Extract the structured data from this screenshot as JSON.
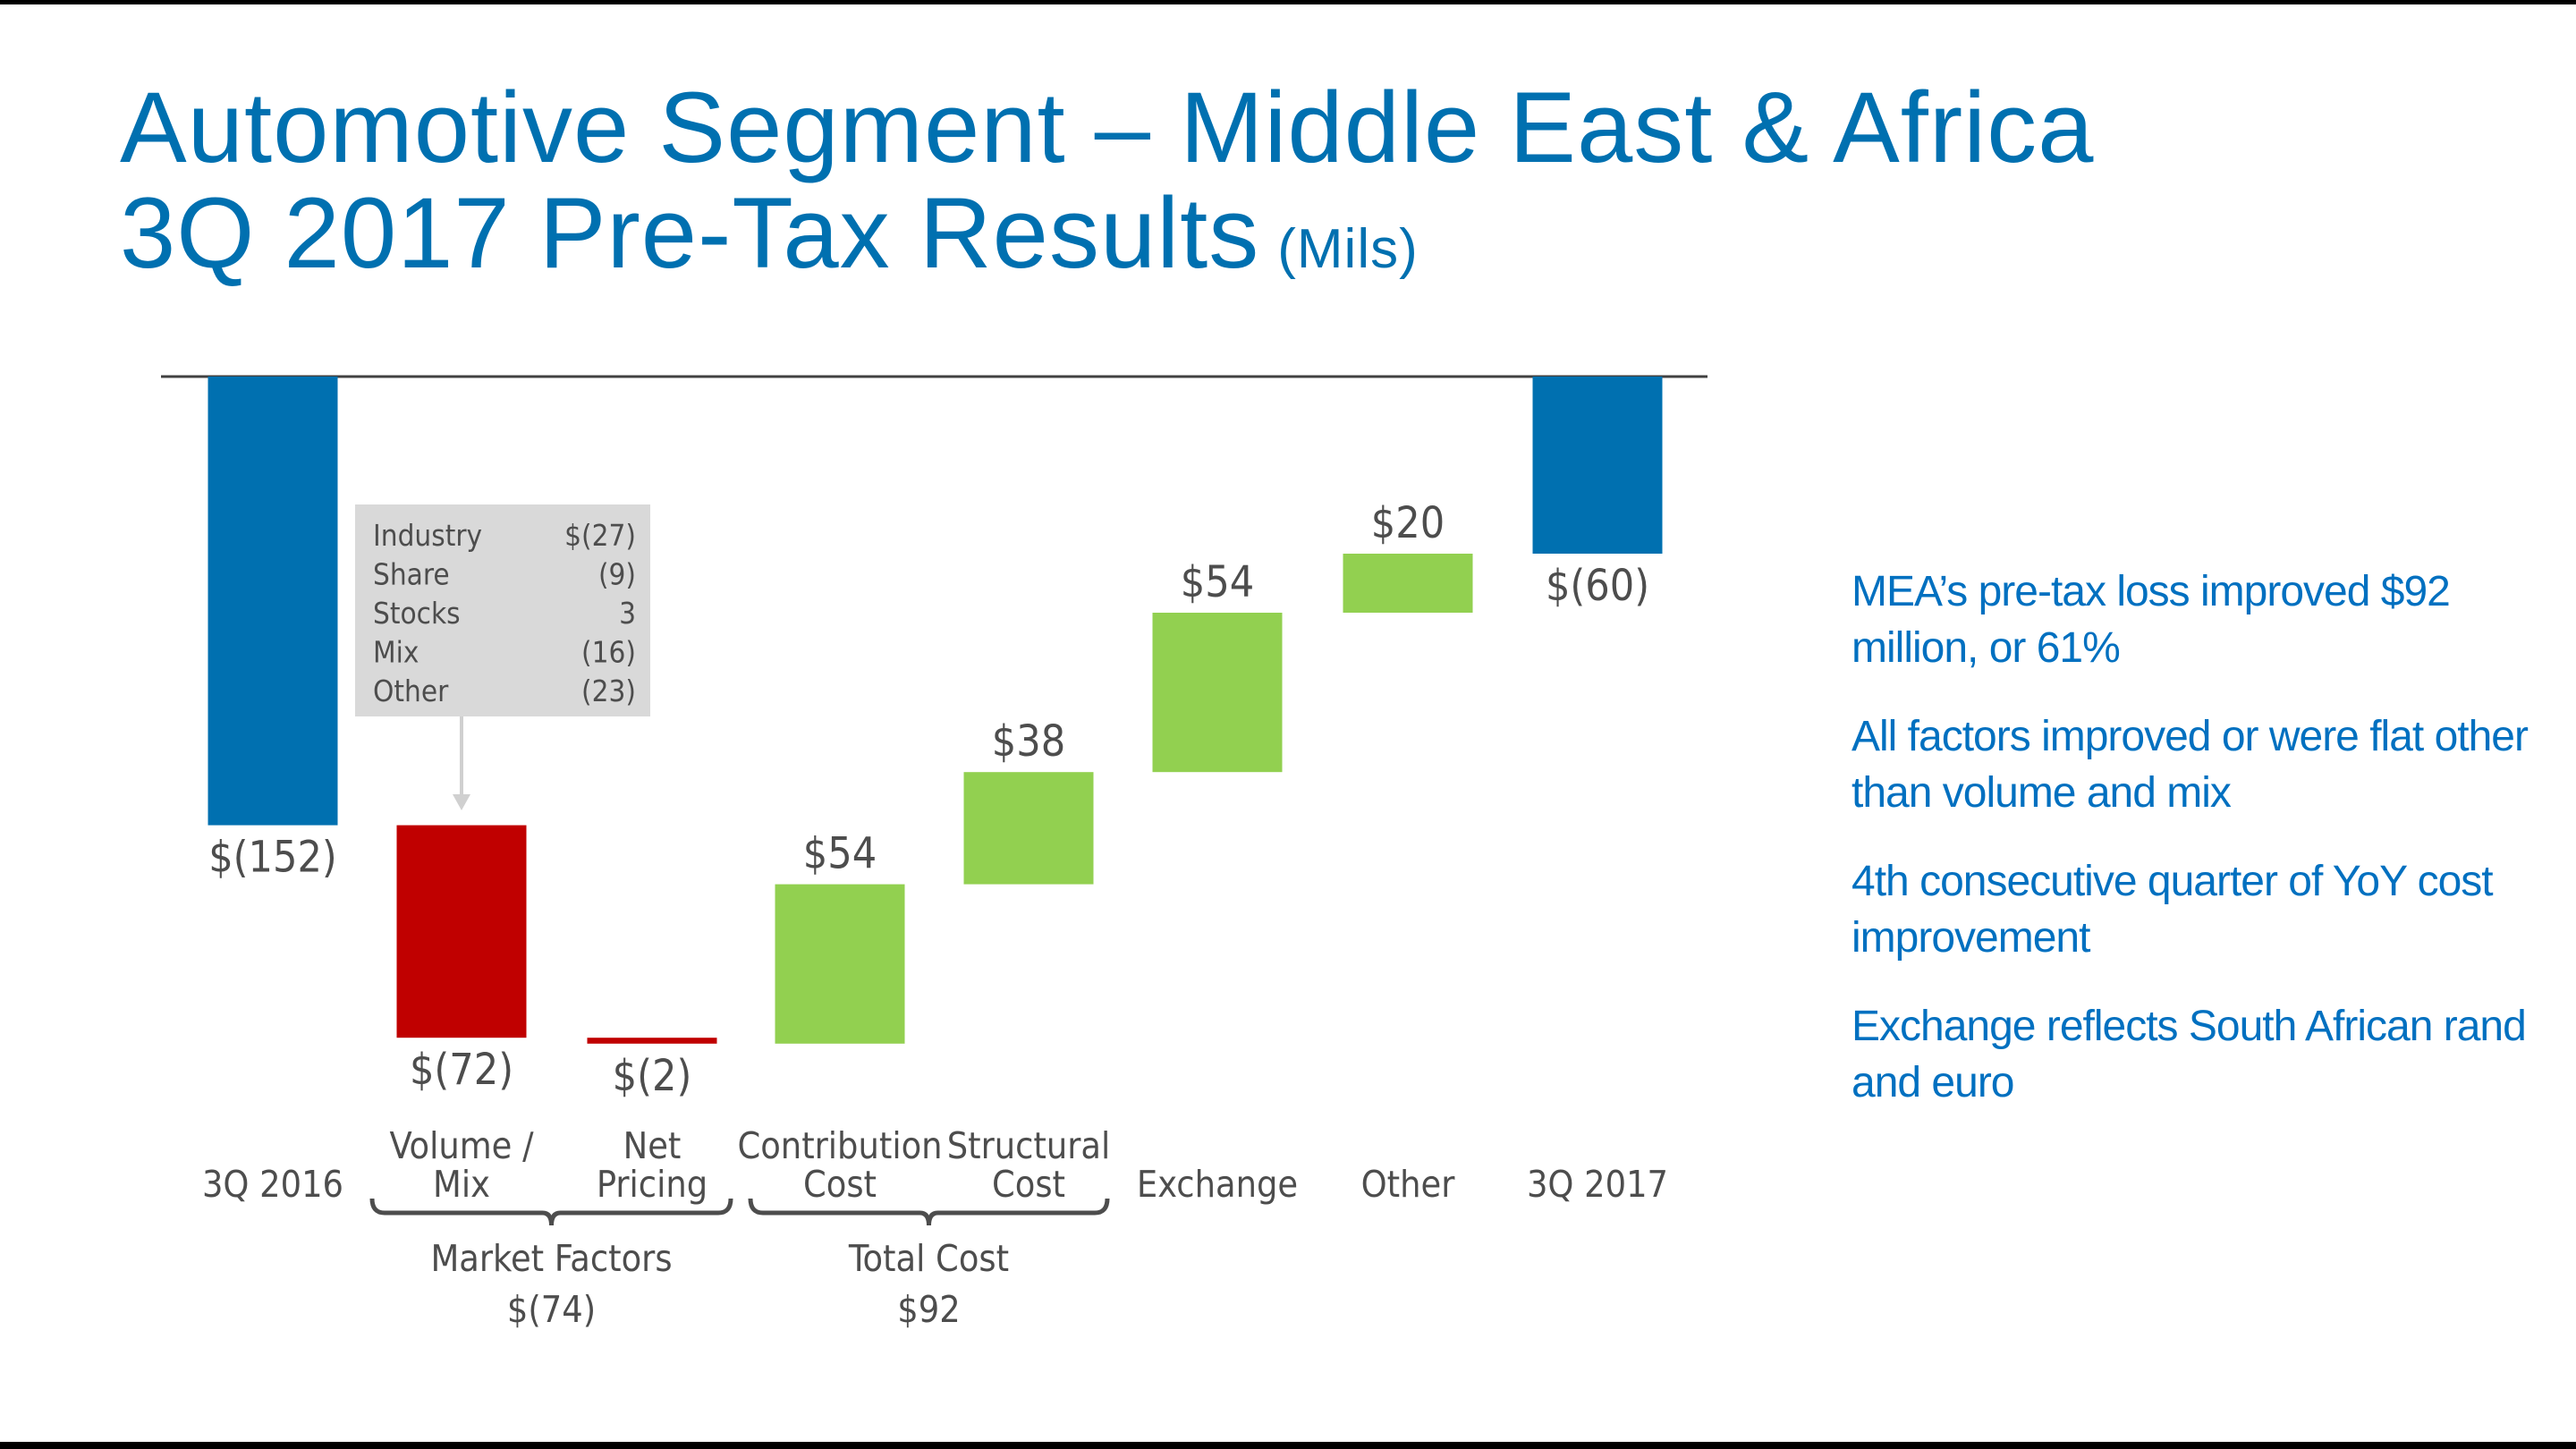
{
  "header": {
    "title_line1": "Automotive Segment – Middle East & Africa",
    "title_line2": "3Q 2017 Pre-Tax Results",
    "unit": "(Mils)"
  },
  "colors": {
    "title": "#0070b0",
    "total": "#0070b0",
    "negative": "#c00000",
    "positive": "#92d050",
    "text": "#4d4d4d",
    "callout_bg": "#d9d9d9"
  },
  "chart_data": {
    "type": "waterfall",
    "categories": [
      "3Q 2016",
      "Volume / Mix",
      "Net Pricing",
      "Contribution Cost",
      "Structural Cost",
      "Exchange",
      "Other",
      "3Q 2017"
    ],
    "category_lines": [
      [
        "3Q 2016"
      ],
      [
        "Volume /",
        "Mix"
      ],
      [
        "Net",
        "Pricing"
      ],
      [
        "Contribution",
        "Cost"
      ],
      [
        "Structural",
        "Cost"
      ],
      [
        "Exchange"
      ],
      [
        "Other"
      ],
      [
        "3Q 2017"
      ]
    ],
    "values": [
      -152,
      -72,
      -2,
      54,
      38,
      54,
      20,
      -60
    ],
    "kinds": [
      "total",
      "delta",
      "delta",
      "delta",
      "delta",
      "delta",
      "delta",
      "total"
    ],
    "data_labels": [
      "$(152)",
      "$(72)",
      "$(2)",
      "$54",
      "$38",
      "$54",
      "$20",
      "$(60)"
    ],
    "ylim": [
      -230,
      0
    ],
    "groups": [
      {
        "label": "Market Factors",
        "value": "$(74)",
        "from": 1,
        "to": 2
      },
      {
        "label": "Total Cost",
        "value": "$92",
        "from": 3,
        "to": 4
      }
    ],
    "callout": {
      "target": "Volume / Mix",
      "rows": [
        {
          "label": "Industry",
          "value": "$(27)"
        },
        {
          "label": "Share",
          "value": "(9)"
        },
        {
          "label": "Stocks",
          "value": "3"
        },
        {
          "label": "Mix",
          "value": "(16)"
        },
        {
          "label": "Other",
          "value": "(23)"
        }
      ]
    }
  },
  "bullets": [
    "MEA’s pre-tax loss improved $92 million, or 61%",
    "All factors improved or were flat other than volume and mix",
    "4th consecutive quarter of YoY cost improvement",
    "Exchange reflects South African rand and euro"
  ]
}
